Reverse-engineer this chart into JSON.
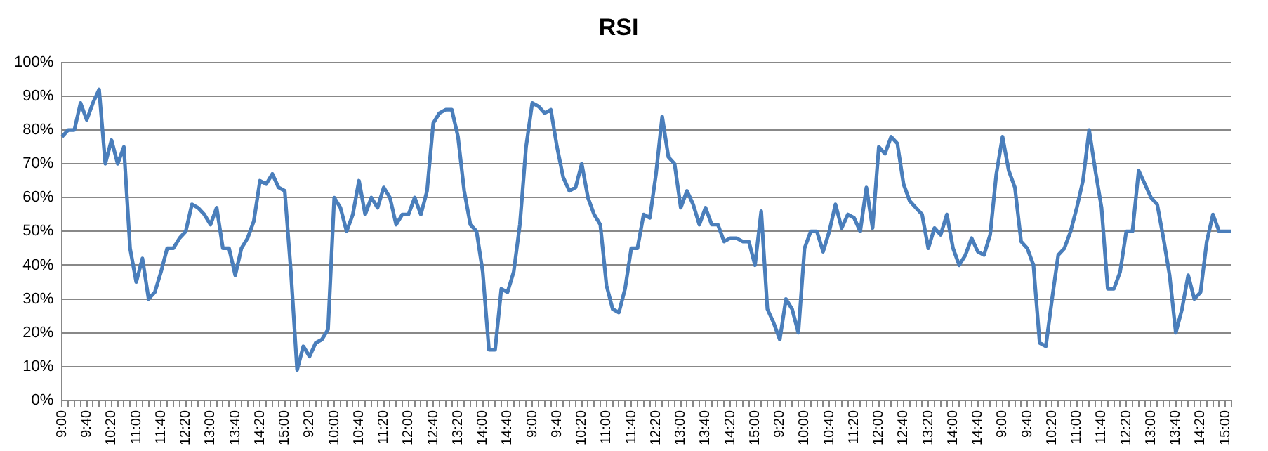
{
  "chart_data": {
    "type": "line",
    "title": "RSI",
    "categories": [
      "9:00",
      null,
      null,
      null,
      "9:40",
      null,
      null,
      null,
      "10:20",
      null,
      null,
      null,
      "11:00",
      null,
      null,
      null,
      "11:40",
      null,
      null,
      null,
      "12:20",
      null,
      null,
      null,
      "13:00",
      null,
      null,
      null,
      "13:40",
      null,
      null,
      null,
      "14:20",
      null,
      null,
      null,
      "15:00",
      null,
      null,
      null,
      "9:20",
      null,
      null,
      null,
      "10:00",
      null,
      null,
      null,
      "10:40",
      null,
      null,
      null,
      "11:20",
      null,
      null,
      null,
      "12:00",
      null,
      null,
      null,
      "12:40",
      null,
      null,
      null,
      "13:20",
      null,
      null,
      null,
      "14:00",
      null,
      null,
      null,
      "14:40",
      null,
      null,
      null,
      "9:00",
      null,
      null,
      null,
      "9:40",
      null,
      null,
      null,
      "10:20",
      null,
      null,
      null,
      "11:00",
      null,
      null,
      null,
      "11:40",
      null,
      null,
      null,
      "12:20",
      null,
      null,
      null,
      "13:00",
      null,
      null,
      null,
      "13:40",
      null,
      null,
      null,
      "14:20",
      null,
      null,
      null,
      "15:00",
      null,
      null,
      null,
      "9:20",
      null,
      null,
      null,
      "10:00",
      null,
      null,
      null,
      "10:40",
      null,
      null,
      null,
      "11:20",
      null,
      null,
      null,
      "12:00",
      null,
      null,
      null,
      "12:40",
      null,
      null,
      null,
      "13:20",
      null,
      null,
      null,
      "14:00",
      null,
      null,
      null,
      "14:40",
      null,
      null,
      null,
      "9:00",
      null,
      null,
      null,
      "9:40",
      null,
      null,
      null,
      "10:20",
      null,
      null,
      null,
      "11:00",
      null,
      null,
      null,
      "11:40",
      null,
      null,
      null,
      "12:20",
      null,
      null,
      null,
      "13:00",
      null,
      null,
      null,
      "13:40",
      null,
      null,
      null,
      "14:20",
      null,
      null,
      null,
      "15:00",
      null
    ],
    "series": [
      {
        "color": "#4a7ebb",
        "values": [
          78,
          80,
          80,
          88,
          83,
          88,
          92,
          70,
          77,
          70,
          75,
          45,
          35,
          42,
          30,
          32,
          38,
          45,
          45,
          48,
          50,
          58,
          57,
          55,
          52,
          57,
          45,
          45,
          37,
          45,
          48,
          53,
          65,
          64,
          67,
          63,
          62,
          38,
          9,
          16,
          13,
          17,
          18,
          21,
          60,
          57,
          50,
          55,
          65,
          55,
          60,
          57,
          63,
          60,
          52,
          55,
          55,
          60,
          55,
          62,
          82,
          85,
          86,
          86,
          78,
          62,
          52,
          50,
          38,
          15,
          15,
          33,
          32,
          38,
          52,
          75,
          88,
          87,
          85,
          86,
          75,
          66,
          62,
          63,
          70,
          60,
          55,
          52,
          34,
          27,
          26,
          33,
          45,
          45,
          55,
          54,
          67,
          84,
          72,
          70,
          57,
          62,
          58,
          52,
          57,
          52,
          52,
          47,
          48,
          48,
          47,
          47,
          40,
          56,
          27,
          23,
          18,
          30,
          27,
          20,
          45,
          50,
          50,
          44,
          50,
          58,
          51,
          55,
          54,
          50,
          63,
          51,
          75,
          73,
          78,
          76,
          64,
          59,
          57,
          55,
          45,
          51,
          49,
          55,
          45,
          40,
          43,
          48,
          44,
          43,
          49,
          67,
          78,
          68,
          63,
          47,
          45,
          40,
          17,
          16,
          30,
          43,
          45,
          50,
          57,
          65,
          80,
          68,
          57,
          33,
          33,
          38,
          50,
          50,
          68,
          64,
          60,
          58,
          48,
          37,
          20,
          27,
          37,
          30,
          32,
          47,
          55,
          50,
          50,
          50
        ]
      }
    ],
    "ylim": [
      0,
      100
    ],
    "yticks": [
      {
        "value": 0,
        "label": "0%"
      },
      {
        "value": 10,
        "label": "10%"
      },
      {
        "value": 20,
        "label": "20%"
      },
      {
        "value": 30,
        "label": "30%"
      },
      {
        "value": 40,
        "label": "40%"
      },
      {
        "value": 50,
        "label": "50%"
      },
      {
        "value": 60,
        "label": "60%"
      },
      {
        "value": 70,
        "label": "70%"
      },
      {
        "value": 80,
        "label": "80%"
      },
      {
        "value": 90,
        "label": "90%"
      },
      {
        "value": 100,
        "label": "100%"
      }
    ],
    "grid": "y",
    "marker": "none",
    "line_style": "solid",
    "legend": false
  }
}
